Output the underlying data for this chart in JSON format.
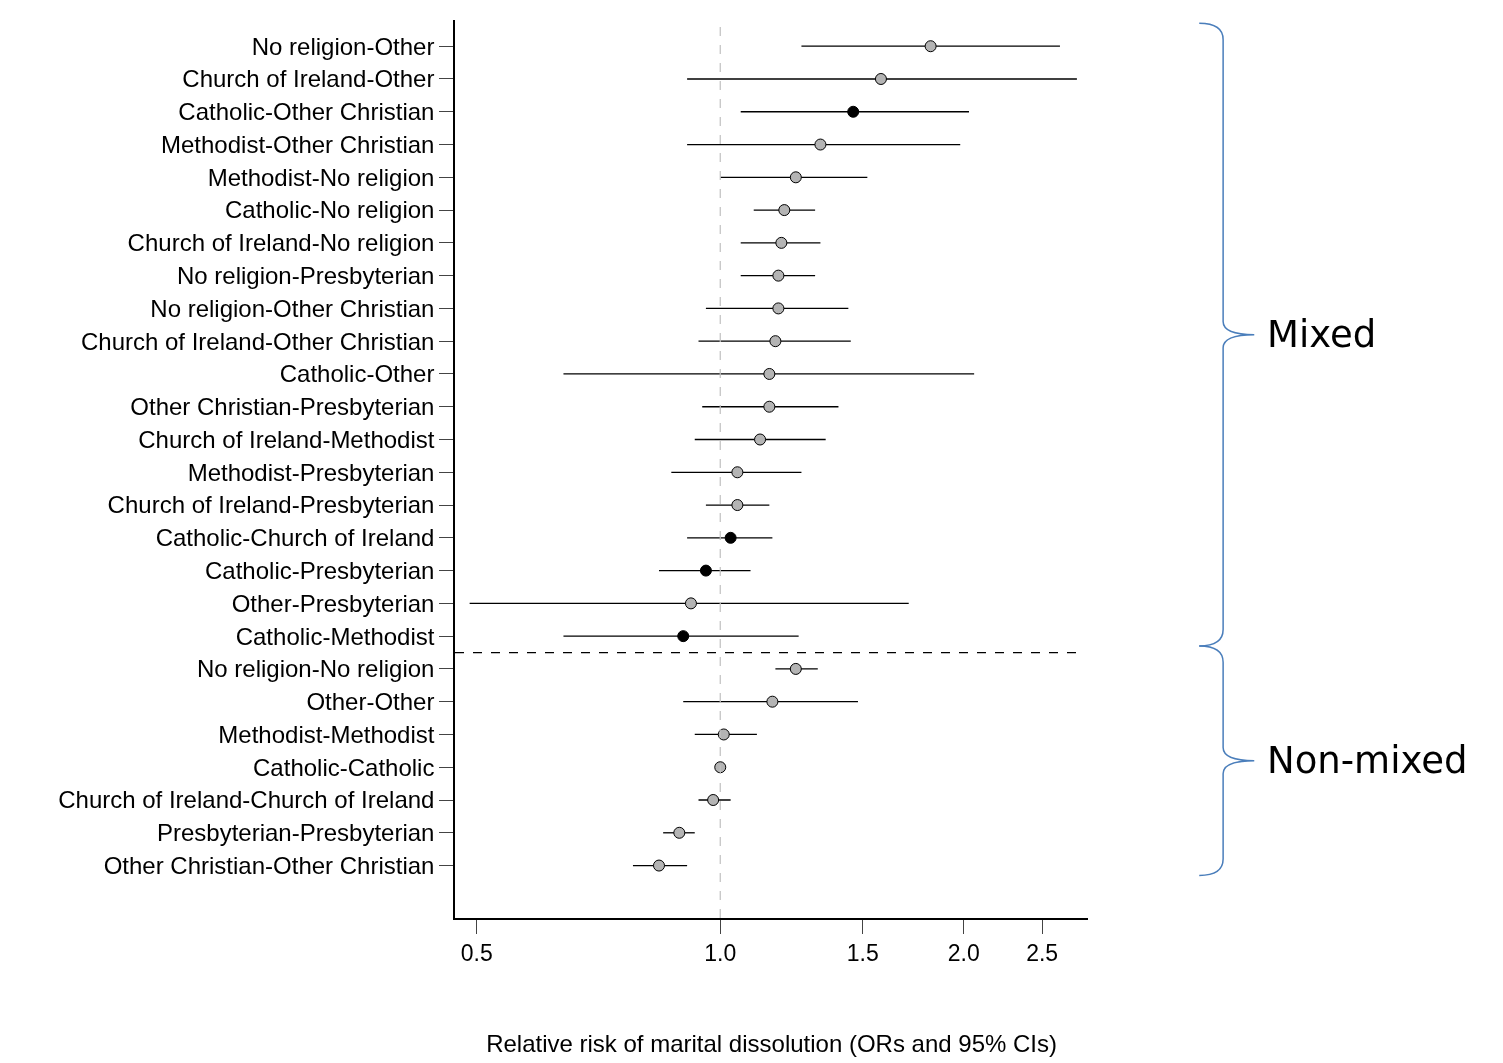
{
  "chart_data": {
    "type": "scatter",
    "orientation": "horizontal",
    "log": "x",
    "categories": [
      "No religion-Other",
      "Church of Ireland-Other",
      "Catholic-Other Christian",
      "Methodist-Other Christian",
      "Methodist-No religion",
      "Catholic-No religion",
      "Church of Ireland-No religion",
      "No religion-Presbyterian",
      "No religion-Other Christian",
      "Church of Ireland-Other Christian",
      "Catholic-Other",
      "Other Christian-Presbyterian",
      "Church of Ireland-Methodist",
      "Methodist-Presbyterian",
      "Church of Ireland-Presbyterian",
      "Catholic-Church of Ireland",
      "Catholic-Presbyterian",
      "Other-Presbyterian",
      "Catholic-Methodist",
      "No religion-No religion",
      "Other-Other",
      "Methodist-Methodist",
      "Catholic-Catholic",
      "Church of Ireland-Church of Ireland",
      "Presbyterian-Presbyterian",
      "Other Christian-Other Christian"
    ],
    "series": [
      {
        "marker": "circle",
        "values": [
          1.82,
          1.58,
          1.46,
          1.33,
          1.24,
          1.2,
          1.19,
          1.18,
          1.18,
          1.17,
          1.15,
          1.15,
          1.12,
          1.05,
          1.05,
          1.03,
          0.96,
          0.92,
          0.9,
          1.24,
          1.16,
          1.01,
          1.0,
          0.98,
          0.89,
          0.84
        ],
        "colors": [
          "#b4b4b4",
          "#b4b4b4",
          "#000000",
          "#b4b4b4",
          "#b4b4b4",
          "#b4b4b4",
          "#b4b4b4",
          "#b4b4b4",
          "#b4b4b4",
          "#b4b4b4",
          "#b4b4b4",
          "#b4b4b4",
          "#b4b4b4",
          "#b4b4b4",
          "#b4b4b4",
          "#000000",
          "#000000",
          "#b4b4b4",
          "#000000",
          "#b4b4b4",
          "#b4b4b4",
          "#b4b4b4",
          "#b4b4b4",
          "#b4b4b4",
          "#b4b4b4",
          "#b4b4b4"
        ],
        "errors": [
          [
            1.26,
            2.63
          ],
          [
            0.91,
            2.76
          ],
          [
            1.06,
            2.03
          ],
          [
            0.91,
            1.98
          ],
          [
            1.0,
            1.52
          ],
          [
            1.1,
            1.31
          ],
          [
            1.06,
            1.33
          ],
          [
            1.06,
            1.31
          ],
          [
            0.96,
            1.44
          ],
          [
            0.94,
            1.45
          ],
          [
            0.64,
            2.06
          ],
          [
            0.95,
            1.4
          ],
          [
            0.93,
            1.35
          ],
          [
            0.87,
            1.26
          ],
          [
            0.96,
            1.15
          ],
          [
            0.91,
            1.16
          ],
          [
            0.84,
            1.09
          ],
          [
            0.49,
            1.71
          ],
          [
            0.64,
            1.25
          ],
          [
            1.17,
            1.32
          ],
          [
            0.9,
            1.48
          ],
          [
            0.93,
            1.11
          ],
          null,
          [
            0.94,
            1.03
          ],
          [
            0.85,
            0.93
          ],
          [
            0.78,
            0.91
          ]
        ]
      }
    ],
    "xlim": [
      0.47,
      2.85
    ],
    "xticks": [
      {
        "value": 0.5,
        "label": "0.5"
      },
      {
        "value": 1.0,
        "label": "1.0"
      },
      {
        "value": 1.5,
        "label": "1.5"
      },
      {
        "value": 2.0,
        "label": "2.0"
      },
      {
        "value": 2.5,
        "label": "2.5"
      }
    ],
    "xlabel": "Relative risk of marital dissolution (ORs and 95% CIs)",
    "ref_lines": [
      {
        "axis": "x",
        "value": 1.0,
        "color": "#c0c0c0",
        "line_style": "dashed"
      },
      {
        "axis": "y",
        "value": "Catholic-Methodist",
        "color": "#000000",
        "line_style": "dashed"
      }
    ],
    "annotations": [
      "Mixed",
      "Non-mixed"
    ]
  }
}
